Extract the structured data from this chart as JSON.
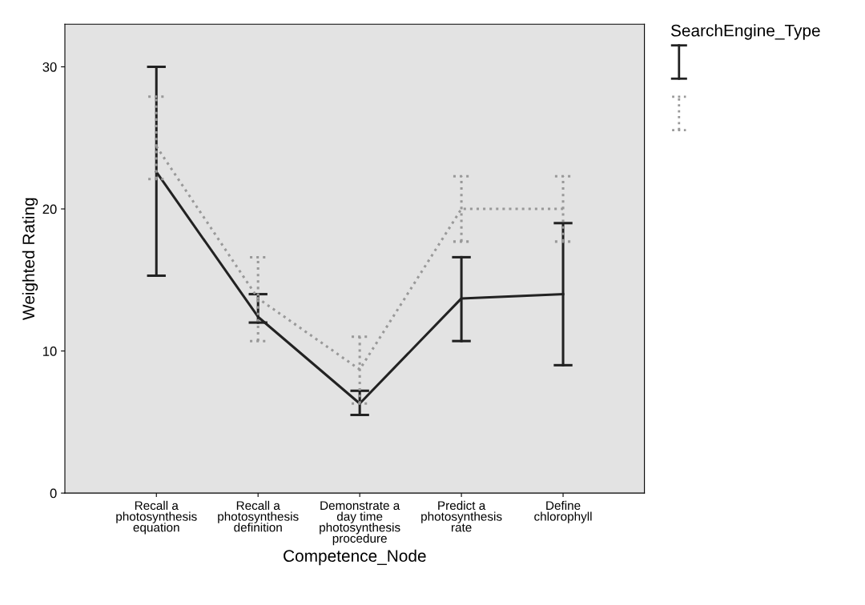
{
  "chart_data": {
    "type": "line",
    "xlabel": "Competence_Node",
    "ylabel": "Weighted Rating",
    "annotations": [
      "SearchEngine_Type"
    ],
    "categories": [
      "Recall a\nphotosynthesis\nequation",
      "Recall a\nphotosynthesis\ndefinition",
      "Demonstrate a\nday time\nphotosynthesis\nprocedure",
      "Predict a\nphotosynthesis\nrate",
      "Define\nchlorophyll"
    ],
    "series": [
      {
        "color": "#222222",
        "line_style": "solid",
        "values": [
          22.6,
          12.4,
          6.3,
          13.7,
          14.0
        ],
        "errors": [
          [
            15.3,
            30.0
          ],
          [
            12.0,
            14.0
          ],
          [
            5.5,
            7.2
          ],
          [
            10.7,
            16.6
          ],
          [
            9.0,
            19.0
          ]
        ]
      },
      {
        "color": "#999999",
        "line_style": "dotted",
        "values": [
          24.4,
          13.7,
          8.7,
          20.0,
          20.0
        ],
        "errors": [
          [
            22.1,
            27.9
          ],
          [
            10.7,
            16.6
          ],
          [
            6.3,
            11.0
          ],
          [
            17.7,
            22.3
          ],
          [
            17.7,
            22.3
          ]
        ]
      }
    ],
    "ylim": [
      0,
      33
    ],
    "yticks": [
      0,
      10,
      20,
      30
    ],
    "grid": false,
    "marker": "none"
  }
}
